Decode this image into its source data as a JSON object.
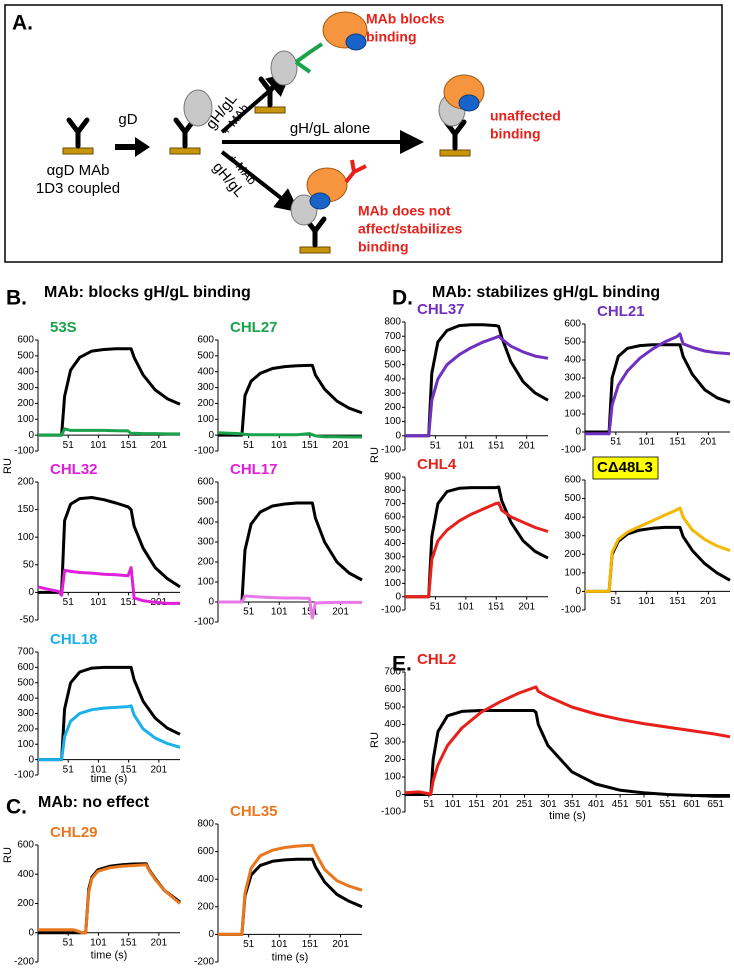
{
  "panel_a": {
    "label": "A.",
    "left_label": [
      "αgD MAb",
      "1D3 coupled"
    ],
    "step1": "gD",
    "upper_arrow": [
      "gH/gL",
      "+ MAb"
    ],
    "lower_arrow": [
      "gH/gL",
      "+ MAb"
    ],
    "middle_arrow": "gH/gL alone",
    "blocks": [
      "MAb blocks",
      "binding"
    ],
    "unaffected": [
      "unaffected",
      "binding"
    ],
    "stabilizes": [
      "MAb does not",
      "affect/stabilizes",
      "binding"
    ]
  },
  "panels": [
    {
      "label": "B.",
      "title": "MAb: blocks gH/gL binding"
    },
    {
      "label": "C.",
      "title": "MAb: no effect"
    },
    {
      "label": "D.",
      "title": "MAb: stabilizes gH/gL binding"
    },
    {
      "label": "E."
    }
  ],
  "chart_data": [
    {
      "type": "line",
      "title": "53S",
      "title_color": "#1aa34a",
      "x": [
        1,
        20,
        35,
        40,
        45,
        55,
        70,
        90,
        110,
        130,
        150,
        155,
        160,
        175,
        195,
        215,
        236
      ],
      "xlim": [
        1,
        236
      ],
      "xticks": [
        51,
        101,
        151,
        201
      ],
      "ylim": [
        -100,
        600
      ],
      "yticks": [
        -100,
        0,
        100,
        200,
        300,
        400,
        500,
        600
      ],
      "series": [
        {
          "color": "#000000",
          "values": [
            0,
            0,
            0,
            0,
            245,
            410,
            490,
            530,
            540,
            545,
            545,
            545,
            490,
            380,
            285,
            230,
            195
          ]
        },
        {
          "color": "#1aa34a",
          "values": [
            0,
            0,
            0,
            0,
            40,
            30,
            30,
            30,
            30,
            28,
            27,
            10,
            12,
            10,
            10,
            8,
            8
          ]
        }
      ]
    },
    {
      "type": "line",
      "title": "CHL27",
      "title_color": "#1aa34a",
      "x": [
        1,
        20,
        35,
        40,
        45,
        55,
        70,
        90,
        110,
        130,
        150,
        155,
        160,
        175,
        195,
        215,
        236
      ],
      "xlim": [
        1,
        236
      ],
      "xticks": [
        51,
        101,
        151,
        201
      ],
      "ylim": [
        -100,
        600
      ],
      "yticks": [
        -100,
        0,
        100,
        200,
        300,
        400,
        500,
        600
      ],
      "series": [
        {
          "color": "#000000",
          "values": [
            0,
            0,
            0,
            0,
            250,
            340,
            390,
            420,
            432,
            438,
            440,
            440,
            380,
            290,
            215,
            170,
            140
          ]
        },
        {
          "color": "#1aa34a",
          "values": [
            15,
            12,
            10,
            8,
            5,
            3,
            2,
            2,
            2,
            2,
            10,
            3,
            -5,
            -10,
            -10,
            -12,
            -12
          ]
        }
      ]
    },
    {
      "type": "line",
      "title": "CHL32",
      "title_color": "#e020d8",
      "ylabel": "RU",
      "x": [
        1,
        20,
        35,
        40,
        45,
        55,
        70,
        90,
        110,
        130,
        150,
        155,
        160,
        175,
        195,
        215,
        236
      ],
      "xlim": [
        1,
        236
      ],
      "xticks": [
        51,
        101,
        151,
        201
      ],
      "ylim": [
        -50,
        200
      ],
      "yticks": [
        -50,
        0,
        50,
        100,
        150,
        200
      ],
      "series": [
        {
          "color": "#000000",
          "values": [
            0,
            0,
            0,
            0,
            130,
            160,
            170,
            172,
            168,
            162,
            155,
            150,
            120,
            80,
            45,
            25,
            10
          ]
        },
        {
          "color": "#e020d8",
          "values": [
            10,
            5,
            2,
            -5,
            40,
            38,
            36,
            35,
            33,
            32,
            30,
            45,
            -10,
            -15,
            -18,
            -20,
            -20
          ]
        }
      ]
    },
    {
      "type": "line",
      "title": "CHL17",
      "title_color": "#e020d8",
      "x": [
        1,
        20,
        35,
        40,
        45,
        55,
        70,
        90,
        110,
        130,
        150,
        155,
        160,
        175,
        195,
        215,
        236
      ],
      "xlim": [
        1,
        236
      ],
      "xticks": [
        51,
        101,
        151,
        201
      ],
      "ylim": [
        -100,
        600
      ],
      "yticks": [
        -100,
        0,
        100,
        200,
        300,
        400,
        500,
        600
      ],
      "series": [
        {
          "color": "#000000",
          "values": [
            0,
            0,
            0,
            0,
            260,
            390,
            450,
            480,
            490,
            495,
            495,
            495,
            420,
            300,
            200,
            145,
            110
          ]
        },
        {
          "color": "#e878e8",
          "values": [
            0,
            0,
            0,
            0,
            30,
            28,
            25,
            22,
            20,
            20,
            18,
            -80,
            -5,
            -3,
            -2,
            -2,
            -2
          ]
        }
      ]
    },
    {
      "type": "line",
      "title": "CHL18",
      "title_color": "#1ab0e8",
      "xlabel": "time (s)",
      "x": [
        1,
        20,
        35,
        40,
        45,
        55,
        70,
        90,
        110,
        130,
        150,
        155,
        160,
        175,
        195,
        215,
        236
      ],
      "xlim": [
        1,
        236
      ],
      "xticks": [
        51,
        101,
        151,
        201
      ],
      "ylim": [
        -100,
        700
      ],
      "yticks": [
        -100,
        0,
        100,
        200,
        300,
        400,
        500,
        600,
        700
      ],
      "series": [
        {
          "color": "#000000",
          "values": [
            0,
            0,
            0,
            0,
            330,
            500,
            570,
            595,
            600,
            600,
            600,
            600,
            520,
            380,
            270,
            205,
            165
          ]
        },
        {
          "color": "#1ab0e8",
          "values": [
            0,
            0,
            0,
            0,
            150,
            250,
            300,
            325,
            335,
            340,
            345,
            350,
            290,
            200,
            140,
            105,
            80
          ]
        }
      ]
    },
    {
      "type": "line",
      "title": "CHL29",
      "title_color": "#e8771e",
      "ylabel": "RU",
      "xlabel": "time (s)",
      "x": [
        1,
        20,
        40,
        60,
        75,
        80,
        85,
        90,
        100,
        120,
        140,
        160,
        180,
        185,
        195,
        210,
        236
      ],
      "xlim": [
        1,
        236
      ],
      "xticks": [
        51,
        101,
        151,
        201
      ],
      "ylim": [
        -200,
        600
      ],
      "yticks": [
        -200,
        0,
        200,
        400,
        600
      ],
      "series": [
        {
          "color": "#000000",
          "values": [
            0,
            0,
            0,
            0,
            0,
            0,
            300,
            380,
            430,
            455,
            465,
            470,
            472,
            430,
            370,
            290,
            210
          ]
        },
        {
          "color": "#e8771e",
          "values": [
            20,
            20,
            20,
            20,
            0,
            0,
            280,
            370,
            420,
            445,
            455,
            460,
            465,
            425,
            365,
            290,
            200
          ]
        }
      ]
    },
    {
      "type": "line",
      "title": "CHL35",
      "title_color": "#e8771e",
      "xlabel": "time (s)",
      "x": [
        1,
        20,
        35,
        40,
        45,
        55,
        70,
        90,
        110,
        130,
        150,
        155,
        160,
        175,
        195,
        215,
        236
      ],
      "xlim": [
        1,
        236
      ],
      "xticks": [
        51,
        101,
        151,
        201
      ],
      "ylim": [
        -200,
        800
      ],
      "yticks": [
        -200,
        0,
        200,
        400,
        600,
        800
      ],
      "series": [
        {
          "color": "#000000",
          "values": [
            0,
            0,
            0,
            0,
            280,
            430,
            500,
            530,
            540,
            545,
            545,
            545,
            490,
            380,
            290,
            240,
            200
          ]
        },
        {
          "color": "#e8771e",
          "values": [
            0,
            0,
            0,
            0,
            300,
            480,
            570,
            610,
            630,
            640,
            645,
            645,
            590,
            470,
            390,
            350,
            320
          ]
        }
      ]
    },
    {
      "type": "line",
      "title": "CHL37",
      "title_color": "#7030c0",
      "ylabel": "RU",
      "x": [
        1,
        20,
        35,
        40,
        45,
        55,
        70,
        90,
        110,
        130,
        150,
        155,
        160,
        175,
        195,
        215,
        236
      ],
      "xlim": [
        1,
        236
      ],
      "xticks": [
        51,
        101,
        151,
        201
      ],
      "ylim": [
        -100,
        800
      ],
      "yticks": [
        -100,
        0,
        100,
        200,
        300,
        400,
        500,
        600,
        700,
        800
      ],
      "series": [
        {
          "color": "#000000",
          "values": [
            0,
            0,
            0,
            0,
            440,
            660,
            740,
            775,
            780,
            780,
            775,
            770,
            690,
            520,
            380,
            300,
            250
          ]
        },
        {
          "color": "#7030c0",
          "values": [
            0,
            0,
            0,
            0,
            250,
            400,
            500,
            570,
            620,
            660,
            690,
            700,
            680,
            630,
            590,
            560,
            545
          ]
        }
      ]
    },
    {
      "type": "line",
      "title": "CHL21",
      "title_color": "#7030c0",
      "x": [
        1,
        20,
        35,
        40,
        45,
        55,
        70,
        90,
        110,
        130,
        150,
        155,
        160,
        175,
        195,
        215,
        236
      ],
      "xlim": [
        1,
        236
      ],
      "xticks": [
        51,
        101,
        151,
        201
      ],
      "ylim": [
        -100,
        600
      ],
      "yticks": [
        -100,
        0,
        100,
        200,
        300,
        400,
        500,
        600
      ],
      "series": [
        {
          "color": "#000000",
          "values": [
            0,
            0,
            0,
            0,
            300,
            420,
            465,
            480,
            485,
            485,
            485,
            485,
            420,
            320,
            235,
            190,
            165
          ]
        },
        {
          "color": "#7030c0",
          "values": [
            -10,
            -10,
            -10,
            -10,
            150,
            260,
            340,
            410,
            460,
            500,
            530,
            545,
            490,
            470,
            450,
            440,
            435
          ]
        }
      ]
    },
    {
      "type": "line",
      "title": "CHL4",
      "title_color": "#e8201a",
      "x": [
        1,
        20,
        35,
        40,
        45,
        55,
        70,
        90,
        110,
        130,
        150,
        155,
        160,
        175,
        195,
        215,
        236
      ],
      "xlim": [
        1,
        236
      ],
      "xticks": [
        51,
        101,
        151,
        201
      ],
      "ylim": [
        -100,
        900
      ],
      "yticks": [
        -100,
        0,
        100,
        200,
        300,
        400,
        500,
        600,
        700,
        800,
        900
      ],
      "series": [
        {
          "color": "#000000",
          "values": [
            0,
            0,
            0,
            0,
            450,
            700,
            790,
            815,
            820,
            820,
            820,
            825,
            720,
            560,
            420,
            340,
            290
          ]
        },
        {
          "color": "#e8201a",
          "values": [
            0,
            0,
            0,
            0,
            280,
            420,
            500,
            570,
            620,
            660,
            700,
            705,
            650,
            600,
            560,
            520,
            490
          ]
        }
      ]
    },
    {
      "type": "line",
      "title": "CΔ48L3",
      "title_color": "#000000",
      "title_background": "#ffff00",
      "x": [
        1,
        20,
        35,
        40,
        45,
        55,
        70,
        90,
        110,
        130,
        150,
        155,
        160,
        175,
        195,
        215,
        236
      ],
      "xlim": [
        1,
        236
      ],
      "xticks": [
        51,
        101,
        151,
        201
      ],
      "ylim": [
        -100,
        600
      ],
      "yticks": [
        -100,
        0,
        100,
        200,
        300,
        400,
        500,
        600
      ],
      "series": [
        {
          "color": "#000000",
          "values": [
            0,
            0,
            0,
            0,
            200,
            270,
            310,
            330,
            340,
            345,
            345,
            345,
            295,
            220,
            150,
            100,
            60
          ]
        },
        {
          "color": "#f5b800",
          "values": [
            0,
            0,
            0,
            0,
            210,
            280,
            320,
            350,
            380,
            410,
            440,
            450,
            400,
            330,
            280,
            245,
            220
          ]
        }
      ]
    },
    {
      "type": "line",
      "title": "CHL2",
      "title_color": "#e8201a",
      "ylabel": "RU",
      "xlabel": "time (s)",
      "x": [
        1,
        30,
        50,
        55,
        60,
        70,
        90,
        120,
        160,
        200,
        240,
        270,
        275,
        280,
        300,
        350,
        400,
        450,
        500,
        550,
        600,
        650,
        681
      ],
      "xlim": [
        1,
        681
      ],
      "xticks": [
        51,
        101,
        151,
        201,
        251,
        301,
        351,
        401,
        451,
        501,
        551,
        601,
        651
      ],
      "ylim": [
        -100,
        700
      ],
      "yticks": [
        -100,
        0,
        100,
        200,
        300,
        400,
        500,
        600,
        700
      ],
      "series": [
        {
          "color": "#000000",
          "values": [
            0,
            0,
            0,
            0,
            200,
            360,
            450,
            475,
            480,
            480,
            480,
            480,
            470,
            400,
            280,
            130,
            60,
            25,
            10,
            0,
            -5,
            -10,
            -10
          ]
        },
        {
          "color": "#e8201a",
          "values": [
            10,
            15,
            5,
            0,
            80,
            170,
            280,
            380,
            470,
            530,
            580,
            610,
            615,
            590,
            560,
            500,
            460,
            430,
            405,
            385,
            365,
            345,
            330
          ]
        }
      ]
    }
  ]
}
